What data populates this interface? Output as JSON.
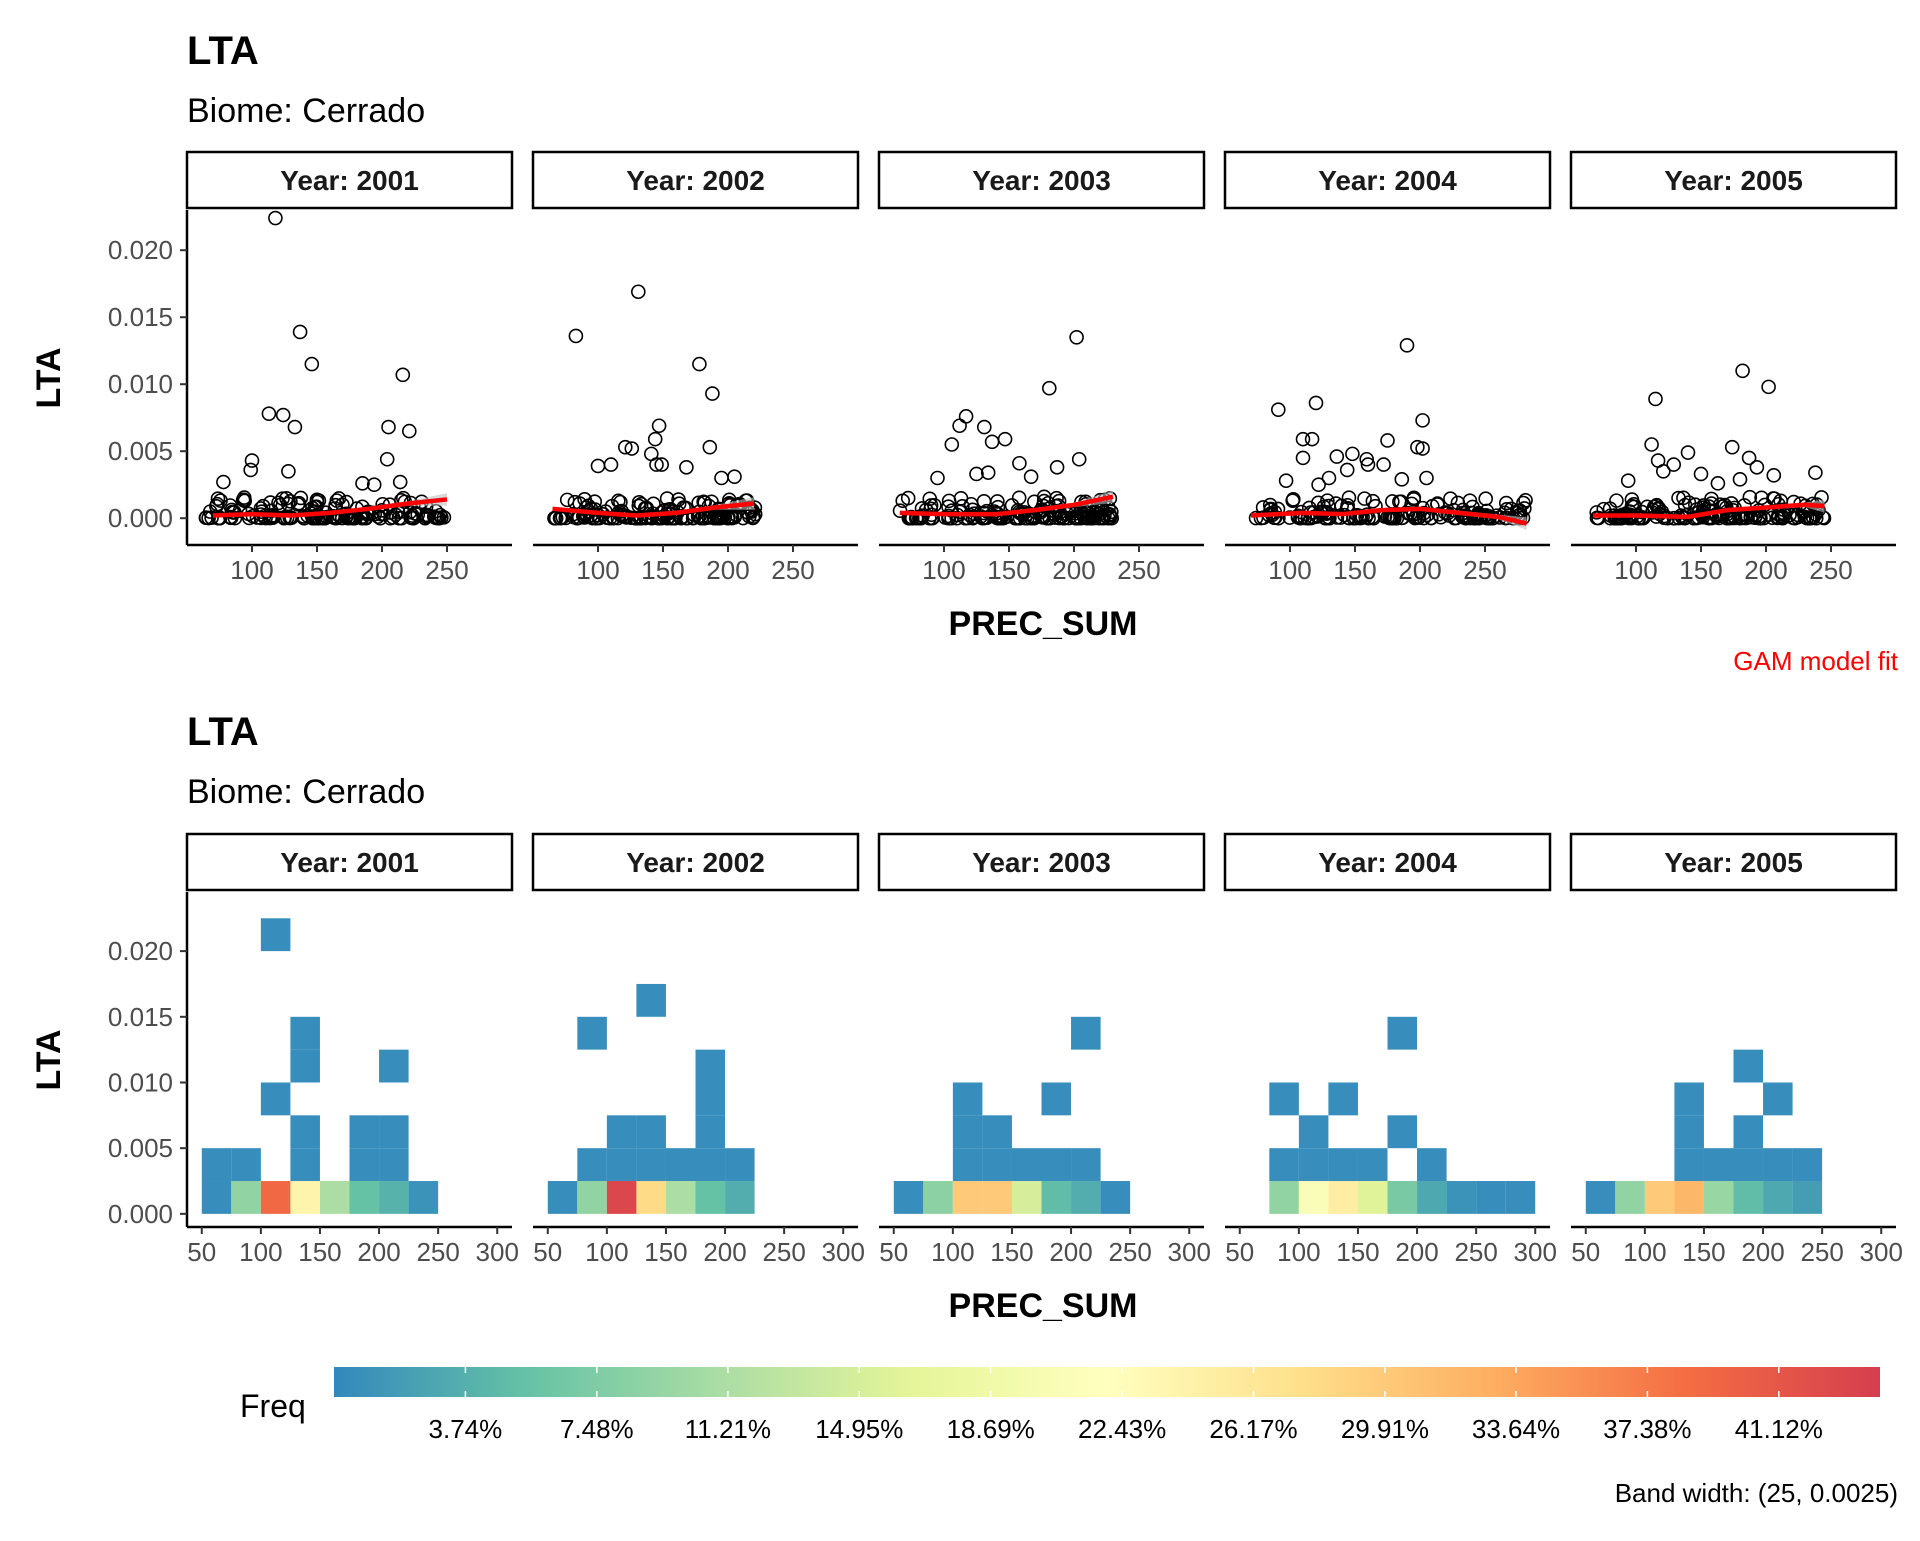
{
  "top_plot": {
    "title": "LTA",
    "subtitle": "Biome: Cerrado",
    "xlabel": "PREC_SUM",
    "ylabel": "LTA",
    "caption": "GAM model fit"
  },
  "bottom_plot": {
    "title": "LTA",
    "subtitle": "Biome: Cerrado",
    "xlabel": "PREC_SUM",
    "ylabel": "LTA",
    "legend_title": "Freq",
    "caption": "Band width: (25, 0.0025)"
  },
  "colors": {
    "fit_line": "#ff0000",
    "ribbon": "#bfbfbf",
    "point_stroke": "#000000",
    "scale": [
      "#3288bd",
      "#66c2a5",
      "#abdda4",
      "#e6f598",
      "#ffffbf",
      "#fee08b",
      "#fdae61",
      "#f46d43",
      "#d53e4f"
    ]
  },
  "chart_data": [
    {
      "type": "scatter",
      "facet_label_prefix": "Year: ",
      "facets": [
        "2001",
        "2002",
        "2003",
        "2004",
        "2005"
      ],
      "xlim": [
        50,
        300
      ],
      "ylim": [
        -0.002,
        0.023
      ],
      "x_ticks": [
        100,
        150,
        200,
        250
      ],
      "y_ticks": [
        0.0,
        0.005,
        0.01,
        0.015,
        0.02
      ],
      "y_tick_labels": [
        "0.000",
        "0.005",
        "0.010",
        "0.015",
        "0.020"
      ],
      "outliers": [
        [
          [
            118,
            0.0224
          ],
          [
            137,
            0.0139
          ],
          [
            146,
            0.0115
          ],
          [
            216,
            0.0107
          ],
          [
            113,
            0.0078
          ],
          [
            124,
            0.0077
          ],
          [
            133,
            0.0068
          ],
          [
            205,
            0.0068
          ],
          [
            221,
            0.0065
          ],
          [
            100,
            0.0043
          ],
          [
            204,
            0.0044
          ],
          [
            128,
            0.0035
          ],
          [
            99,
            0.0036
          ],
          [
            78,
            0.0027
          ],
          [
            214,
            0.0027
          ],
          [
            185,
            0.0026
          ],
          [
            194,
            0.0025
          ]
        ],
        [
          [
            131,
            0.0169
          ],
          [
            83,
            0.0136
          ],
          [
            178,
            0.0115
          ],
          [
            188,
            0.0093
          ],
          [
            147,
            0.0069
          ],
          [
            144,
            0.0059
          ],
          [
            121,
            0.0053
          ],
          [
            126,
            0.0052
          ],
          [
            186,
            0.0053
          ],
          [
            141,
            0.0048
          ],
          [
            149,
            0.004
          ],
          [
            145,
            0.004
          ],
          [
            168,
            0.0038
          ],
          [
            100,
            0.0039
          ],
          [
            110,
            0.004
          ],
          [
            195,
            0.003
          ],
          [
            205,
            0.0031
          ]
        ],
        [
          [
            202,
            0.0135
          ],
          [
            181,
            0.0097
          ],
          [
            117,
            0.0076
          ],
          [
            112,
            0.0069
          ],
          [
            131,
            0.0068
          ],
          [
            147,
            0.0059
          ],
          [
            137,
            0.0057
          ],
          [
            106,
            0.0055
          ],
          [
            204,
            0.0044
          ],
          [
            158,
            0.0041
          ],
          [
            187,
            0.0038
          ],
          [
            125,
            0.0033
          ],
          [
            167,
            0.0031
          ],
          [
            95,
            0.003
          ],
          [
            134,
            0.0034
          ]
        ],
        [
          [
            190,
            0.0129
          ],
          [
            120,
            0.0086
          ],
          [
            91,
            0.0081
          ],
          [
            202,
            0.0073
          ],
          [
            110,
            0.0059
          ],
          [
            117,
            0.0059
          ],
          [
            175,
            0.0058
          ],
          [
            110,
            0.0045
          ],
          [
            136,
            0.0046
          ],
          [
            202,
            0.0052
          ],
          [
            148,
            0.0048
          ],
          [
            160,
            0.004
          ],
          [
            198,
            0.0053
          ],
          [
            159,
            0.0044
          ],
          [
            144,
            0.0036
          ],
          [
            172,
            0.004
          ],
          [
            130,
            0.003
          ],
          [
            97,
            0.0028
          ],
          [
            122,
            0.0025
          ],
          [
            186,
            0.0029
          ],
          [
            205,
            0.003
          ]
        ],
        [
          [
            182,
            0.011
          ],
          [
            202,
            0.0098
          ],
          [
            115,
            0.0089
          ],
          [
            112,
            0.0055
          ],
          [
            174,
            0.0053
          ],
          [
            187,
            0.0045
          ],
          [
            140,
            0.0049
          ],
          [
            129,
            0.004
          ],
          [
            193,
            0.0038
          ],
          [
            117,
            0.0043
          ],
          [
            121,
            0.0035
          ],
          [
            238,
            0.0034
          ],
          [
            206,
            0.0032
          ],
          [
            150,
            0.0033
          ],
          [
            94,
            0.0028
          ],
          [
            180,
            0.0029
          ],
          [
            163,
            0.0026
          ]
        ]
      ],
      "x_range": [
        [
          64,
          248
        ],
        [
          65,
          221
        ],
        [
          66,
          230
        ],
        [
          70,
          282
        ],
        [
          67,
          245
        ]
      ],
      "fit": [
        [
          [
            70,
            0.0002
          ],
          [
            100,
            0.0003
          ],
          [
            130,
            0.0002
          ],
          [
            160,
            0.0004
          ],
          [
            190,
            0.0007
          ],
          [
            220,
            0.0011
          ],
          [
            250,
            0.0014
          ]
        ],
        [
          [
            65,
            0.0007
          ],
          [
            100,
            0.0004
          ],
          [
            130,
            0.0002
          ],
          [
            160,
            0.0004
          ],
          [
            190,
            0.0008
          ],
          [
            220,
            0.0011
          ]
        ],
        [
          [
            66,
            0.0004
          ],
          [
            100,
            0.0003
          ],
          [
            140,
            0.0003
          ],
          [
            170,
            0.0006
          ],
          [
            200,
            0.001
          ],
          [
            230,
            0.0016
          ]
        ],
        [
          [
            70,
            0.0002
          ],
          [
            110,
            0.0004
          ],
          [
            140,
            0.0003
          ],
          [
            170,
            0.0006
          ],
          [
            200,
            0.0007
          ],
          [
            230,
            0.0004
          ],
          [
            260,
            0.0001
          ],
          [
            282,
            -0.0004
          ]
        ],
        [
          [
            67,
            0.0002
          ],
          [
            100,
            0.0002
          ],
          [
            140,
            0.0001
          ],
          [
            170,
            0.0006
          ],
          [
            200,
            0.0008
          ],
          [
            230,
            0.001
          ],
          [
            245,
            0.0009
          ]
        ]
      ]
    },
    {
      "type": "heatmap",
      "facet_label_prefix": "Year: ",
      "facets": [
        "2001",
        "2002",
        "2003",
        "2004",
        "2005"
      ],
      "xlim": [
        37.5,
        312.5
      ],
      "ylim": [
        -0.001,
        0.0245
      ],
      "x_ticks": [
        50,
        100,
        150,
        200,
        250,
        300
      ],
      "y_ticks": [
        0.0,
        0.005,
        0.01,
        0.015,
        0.02
      ],
      "y_tick_labels": [
        "0.000",
        "0.005",
        "0.010",
        "0.015",
        "0.020"
      ],
      "bin_width": [
        25,
        0.0025
      ],
      "tiles": [
        [
          [
            62.5,
            0.00125,
            0.5
          ],
          [
            87.5,
            0.00125,
            9
          ],
          [
            112.5,
            0.00125,
            39
          ],
          [
            137.5,
            0.00125,
            24
          ],
          [
            162.5,
            0.00125,
            11
          ],
          [
            187.5,
            0.00125,
            5.5
          ],
          [
            212.5,
            0.00125,
            4
          ],
          [
            237.5,
            0.00125,
            1
          ],
          [
            62.5,
            0.00375,
            0.5
          ],
          [
            87.5,
            0.00375,
            0.5
          ],
          [
            137.5,
            0.00375,
            0.5
          ],
          [
            187.5,
            0.00375,
            0.5
          ],
          [
            212.5,
            0.00375,
            0.5
          ],
          [
            137.5,
            0.00625,
            0.5
          ],
          [
            187.5,
            0.00625,
            0.5
          ],
          [
            212.5,
            0.00625,
            0.5
          ],
          [
            112.5,
            0.00875,
            0.5
          ],
          [
            137.5,
            0.01125,
            0.5
          ],
          [
            212.5,
            0.01125,
            0.5
          ],
          [
            137.5,
            0.01375,
            0.5
          ],
          [
            112.5,
            0.02125,
            0.5
          ]
        ],
        [
          [
            62.5,
            0.00125,
            0.5
          ],
          [
            87.5,
            0.00125,
            9
          ],
          [
            112.5,
            0.00125,
            43
          ],
          [
            137.5,
            0.00125,
            28
          ],
          [
            162.5,
            0.00125,
            11
          ],
          [
            187.5,
            0.00125,
            5.5
          ],
          [
            212.5,
            0.00125,
            3.5
          ],
          [
            87.5,
            0.00375,
            0.5
          ],
          [
            112.5,
            0.00375,
            0.5
          ],
          [
            137.5,
            0.00375,
            0.5
          ],
          [
            162.5,
            0.00375,
            0.5
          ],
          [
            187.5,
            0.00375,
            0.5
          ],
          [
            212.5,
            0.00375,
            0.5
          ],
          [
            112.5,
            0.00625,
            0.5
          ],
          [
            137.5,
            0.00625,
            0.5
          ],
          [
            187.5,
            0.00625,
            0.5
          ],
          [
            187.5,
            0.00875,
            0.5
          ],
          [
            187.5,
            0.01125,
            0.5
          ],
          [
            87.5,
            0.01375,
            0.5
          ],
          [
            137.5,
            0.01625,
            0.5
          ]
        ],
        [
          [
            62.5,
            0.00125,
            0.5
          ],
          [
            87.5,
            0.00125,
            8.5
          ],
          [
            112.5,
            0.00125,
            30
          ],
          [
            137.5,
            0.00125,
            30
          ],
          [
            162.5,
            0.00125,
            15
          ],
          [
            187.5,
            0.00125,
            5
          ],
          [
            212.5,
            0.00125,
            3.5
          ],
          [
            237.5,
            0.00125,
            0.5
          ],
          [
            112.5,
            0.00375,
            0.5
          ],
          [
            137.5,
            0.00375,
            0.5
          ],
          [
            162.5,
            0.00375,
            0.5
          ],
          [
            187.5,
            0.00375,
            0.5
          ],
          [
            212.5,
            0.00375,
            0.5
          ],
          [
            112.5,
            0.00625,
            0.5
          ],
          [
            137.5,
            0.00625,
            0.5
          ],
          [
            112.5,
            0.00875,
            0.5
          ],
          [
            187.5,
            0.00875,
            0.5
          ],
          [
            212.5,
            0.01375,
            0.5
          ]
        ],
        [
          [
            87.5,
            0.00125,
            9
          ],
          [
            112.5,
            0.00125,
            21
          ],
          [
            137.5,
            0.00125,
            25
          ],
          [
            162.5,
            0.00125,
            16
          ],
          [
            187.5,
            0.00125,
            7
          ],
          [
            212.5,
            0.00125,
            3
          ],
          [
            237.5,
            0.00125,
            1
          ],
          [
            262.5,
            0.00125,
            0.5
          ],
          [
            287.5,
            0.00125,
            0.5
          ],
          [
            87.5,
            0.00375,
            0.5
          ],
          [
            112.5,
            0.00375,
            0.5
          ],
          [
            137.5,
            0.00375,
            0.5
          ],
          [
            162.5,
            0.00375,
            0.5
          ],
          [
            212.5,
            0.00375,
            0.5
          ],
          [
            112.5,
            0.00625,
            0.5
          ],
          [
            187.5,
            0.00625,
            0.5
          ],
          [
            87.5,
            0.00875,
            0.5
          ],
          [
            137.5,
            0.00875,
            0.5
          ],
          [
            187.5,
            0.01375,
            0.5
          ]
        ],
        [
          [
            62.5,
            0.00125,
            0.5
          ],
          [
            87.5,
            0.00125,
            9
          ],
          [
            112.5,
            0.00125,
            30
          ],
          [
            137.5,
            0.00125,
            32
          ],
          [
            162.5,
            0.00125,
            9.5
          ],
          [
            187.5,
            0.00125,
            5
          ],
          [
            212.5,
            0.00125,
            3
          ],
          [
            237.5,
            0.00125,
            2
          ],
          [
            137.5,
            0.00375,
            0.5
          ],
          [
            162.5,
            0.00375,
            0.5
          ],
          [
            212.5,
            0.00375,
            0.5
          ],
          [
            237.5,
            0.00375,
            0.5
          ],
          [
            187.5,
            0.00375,
            0.5
          ],
          [
            137.5,
            0.00625,
            0.5
          ],
          [
            187.5,
            0.00625,
            0.5
          ],
          [
            137.5,
            0.00875,
            0.5
          ],
          [
            212.5,
            0.00875,
            0.5
          ],
          [
            187.5,
            0.01125,
            0.5
          ]
        ]
      ],
      "legend": {
        "min": 0,
        "max": 44,
        "ticks": [
          "3.74%",
          "7.48%",
          "11.21%",
          "14.95%",
          "18.69%",
          "22.43%",
          "26.17%",
          "29.91%",
          "33.64%",
          "37.38%",
          "41.12%"
        ]
      }
    }
  ]
}
